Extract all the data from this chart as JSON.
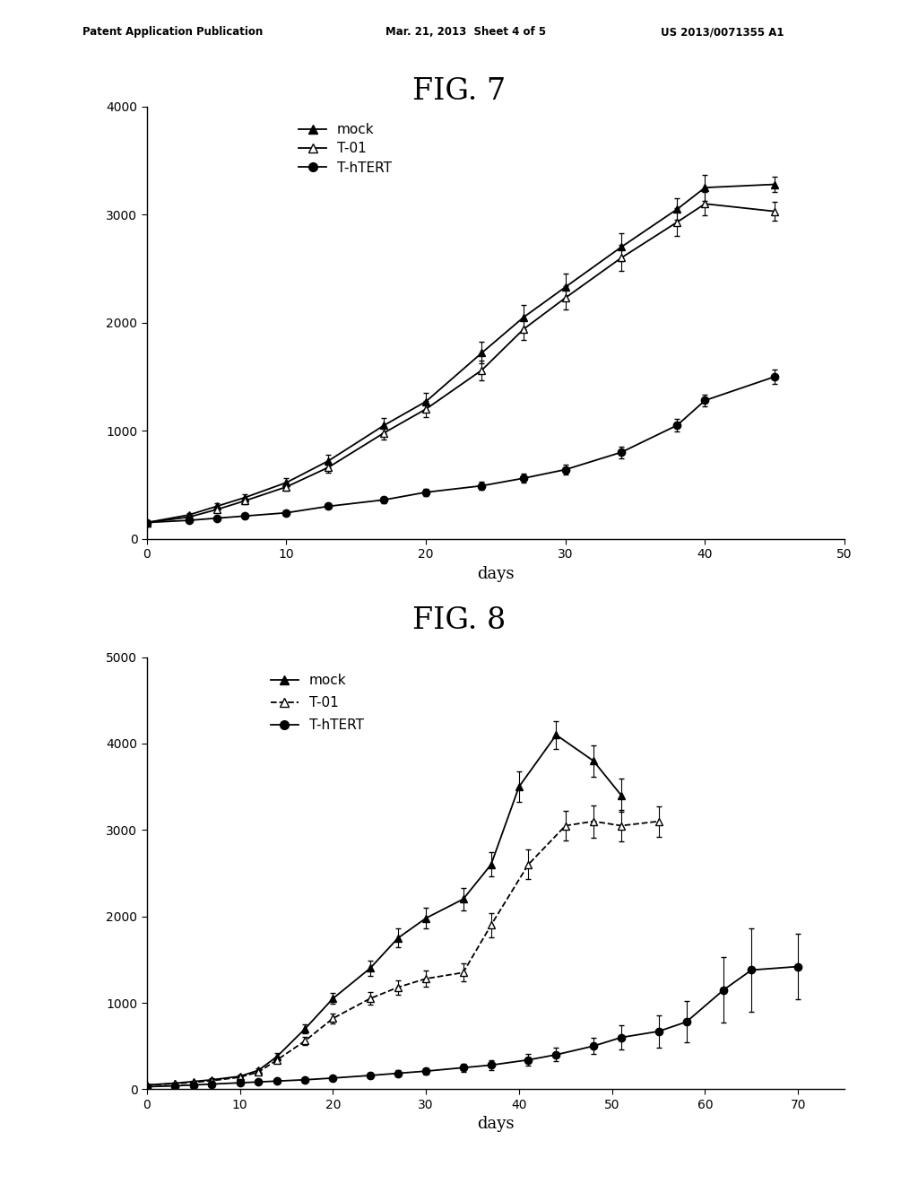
{
  "fig7_title": "FIG. 7",
  "fig8_title": "FIG. 8",
  "header_left": "Patent Application Publication",
  "header_mid": "Mar. 21, 2013  Sheet 4 of 5",
  "header_right": "US 2013/0071355 A1",
  "fig7": {
    "xlabel": "days",
    "ylim": [
      0,
      4000
    ],
    "xlim": [
      0,
      50
    ],
    "yticks": [
      0,
      1000,
      2000,
      3000,
      4000
    ],
    "xticks": [
      0,
      10,
      20,
      30,
      40,
      50
    ],
    "mock_x": [
      0,
      3,
      5,
      7,
      10,
      13,
      17,
      20,
      24,
      27,
      30,
      34,
      38,
      40,
      45
    ],
    "mock_y": [
      150,
      220,
      300,
      380,
      520,
      720,
      1050,
      1270,
      1720,
      2050,
      2330,
      2700,
      3050,
      3250,
      3280
    ],
    "mock_yerr": [
      15,
      20,
      25,
      30,
      40,
      55,
      70,
      80,
      100,
      110,
      120,
      130,
      100,
      120,
      70
    ],
    "t01_x": [
      0,
      3,
      5,
      7,
      10,
      13,
      17,
      20,
      24,
      27,
      30,
      34,
      38,
      40,
      45
    ],
    "t01_y": [
      150,
      200,
      270,
      350,
      480,
      660,
      980,
      1200,
      1560,
      1940,
      2230,
      2600,
      2930,
      3100,
      3030
    ],
    "t01_yerr": [
      15,
      18,
      22,
      28,
      38,
      50,
      65,
      75,
      90,
      100,
      110,
      120,
      130,
      110,
      90
    ],
    "thTERT_x": [
      0,
      3,
      5,
      7,
      10,
      13,
      17,
      20,
      24,
      27,
      30,
      34,
      38,
      40,
      45
    ],
    "thTERT_y": [
      150,
      170,
      190,
      210,
      240,
      300,
      360,
      430,
      490,
      560,
      640,
      800,
      1050,
      1280,
      1500
    ],
    "thTERT_yerr": [
      15,
      15,
      18,
      20,
      22,
      25,
      28,
      33,
      38,
      43,
      48,
      55,
      60,
      55,
      65
    ]
  },
  "fig8": {
    "xlabel": "days",
    "ylim": [
      0,
      5000
    ],
    "xlim": [
      0,
      75
    ],
    "yticks": [
      0,
      1000,
      2000,
      3000,
      4000,
      5000
    ],
    "xticks": [
      0,
      10,
      20,
      30,
      40,
      50,
      60,
      70
    ],
    "mock_x": [
      0,
      3,
      5,
      7,
      10,
      12,
      14,
      17,
      20,
      24,
      27,
      30,
      34,
      37,
      40,
      44,
      48,
      51
    ],
    "mock_y": [
      50,
      70,
      90,
      110,
      150,
      220,
      380,
      700,
      1050,
      1400,
      1750,
      1980,
      2200,
      2600,
      3500,
      4100,
      3800,
      3400
    ],
    "mock_yerr": [
      8,
      10,
      12,
      15,
      18,
      25,
      35,
      50,
      65,
      90,
      110,
      120,
      130,
      140,
      180,
      160,
      180,
      190
    ],
    "t01_x": [
      0,
      3,
      5,
      7,
      10,
      12,
      14,
      17,
      20,
      24,
      27,
      30,
      34,
      37,
      41,
      45,
      48,
      51,
      55
    ],
    "t01_y": [
      50,
      65,
      80,
      100,
      140,
      200,
      340,
      560,
      820,
      1050,
      1180,
      1280,
      1350,
      1900,
      2600,
      3050,
      3100,
      3050,
      3100
    ],
    "t01_yerr": [
      8,
      10,
      12,
      14,
      16,
      22,
      32,
      45,
      58,
      75,
      85,
      95,
      105,
      140,
      170,
      175,
      185,
      185,
      175
    ],
    "thTERT_x": [
      0,
      3,
      5,
      7,
      10,
      12,
      14,
      17,
      20,
      24,
      27,
      30,
      34,
      37,
      41,
      44,
      48,
      51,
      55,
      58,
      62,
      65,
      70
    ],
    "thTERT_y": [
      30,
      40,
      50,
      60,
      75,
      85,
      95,
      110,
      130,
      160,
      185,
      210,
      250,
      280,
      340,
      400,
      500,
      600,
      670,
      780,
      1150,
      1380,
      1420
    ],
    "thTERT_yerr": [
      6,
      8,
      10,
      12,
      14,
      16,
      18,
      20,
      23,
      28,
      32,
      38,
      48,
      58,
      68,
      78,
      95,
      140,
      190,
      240,
      380,
      480,
      380
    ]
  },
  "legend_labels": [
    "mock",
    "T-01",
    "T-hTERT"
  ],
  "color": "#000000",
  "background": "#ffffff"
}
